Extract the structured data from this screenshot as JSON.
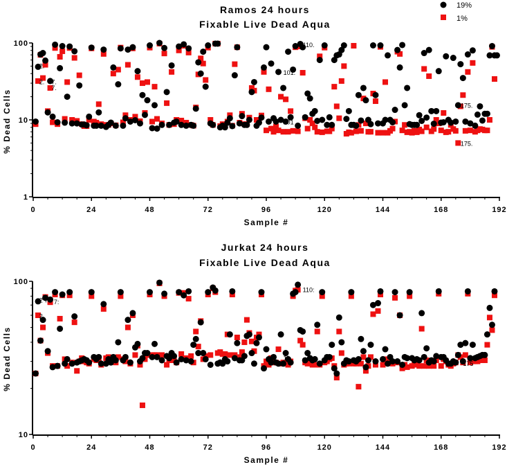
{
  "legend": [
    {
      "label": "19%",
      "color": "#000000",
      "marker": "circle"
    },
    {
      "label": "1%",
      "color": "#ee1111",
      "marker": "square"
    }
  ],
  "chart_data": [
    {
      "type": "scatter",
      "title": "Ramos 24 hours",
      "subtitle": "Fixable Live Dead Aqua",
      "xlabel": "Sample #",
      "ylabel": "% Dead Cells",
      "xlim": [
        0,
        192
      ],
      "xticks": [
        0,
        24,
        48,
        72,
        96,
        120,
        144,
        168,
        192
      ],
      "xtick_labels": [
        "0",
        "24",
        "48",
        "72",
        "96",
        "120",
        "144",
        "168",
        "192"
      ],
      "yscale": "log",
      "ylim": [
        1,
        100
      ],
      "yticks": [
        1,
        10,
        100
      ],
      "ytick_labels": [
        "1",
        "10",
        "100"
      ],
      "x_note": "sample number = position in values array starting at 1",
      "series": [
        {
          "name": "1%",
          "color": "#ee1111",
          "marker": "square",
          "values": [
            8.8,
            32,
            70,
            35,
            52,
            13,
            26,
            9.3,
            86,
            8.8,
            66,
            78,
            10.3,
            31,
            86,
            10,
            64,
            9.7,
            38,
            8.8,
            8.3,
            8.3,
            10,
            85,
            9.5,
            9.2,
            16,
            8.8,
            72,
            8.6,
            8.6,
            9,
            40,
            8.5,
            45,
            87,
            9.3,
            11.5,
            52,
            10,
            85,
            11,
            36,
            9.6,
            30,
            12.3,
            31,
            87,
            9.5,
            27,
            10.3,
            98,
            9,
            73,
            16.5,
            8.6,
            42,
            8.8,
            10,
            80,
            9.8,
            92,
            9.2,
            75,
            8.6,
            8.4,
            14.5,
            39,
            63,
            54,
            33,
            87,
            10,
            8.6,
            98,
            98,
            8.3,
            8.8,
            8.4,
            9.5,
            11.5,
            8.4,
            53,
            88,
            9.2,
            12,
            8.8,
            8.8,
            10.7,
            26,
            24,
            10,
            9.5,
            11.4,
            42,
            7.3,
            25,
            7.7,
            7,
            8.2,
            7.3,
            20,
            7,
            18.5,
            7,
            13,
            7.2,
            88,
            7.1,
            90,
            41,
            10.5,
            7.7,
            10,
            9,
            8,
            7,
            67,
            6.9,
            87,
            7.1,
            7.1,
            7.7,
            27,
            15,
            10.5,
            32,
            50,
            6.6,
            6.9,
            6.8,
            92,
            7.1,
            8.6,
            7.2,
            19,
            9,
            7,
            7,
            22,
            17.5,
            6.8,
            89,
            6.8,
            31,
            6.8,
            7.2,
            7.7,
            9.5,
            77,
            72,
            7.3,
            8.6,
            6.9,
            7,
            6.8,
            7.2,
            6.9,
            7.5,
            7.1,
            46,
            8,
            37,
            7.1,
            7.6,
            10,
            9,
            7.3,
            12.3,
            6.9,
            7,
            8.6,
            7.6,
            7.2,
            5,
            15,
            21,
            7.2,
            42,
            7.3,
            55,
            7,
            7.3,
            7.6,
            7.5,
            7.3,
            7.3,
            10,
            89,
            34
          ]
        },
        {
          "name": "19%",
          "color": "#000000",
          "marker": "circle",
          "values": [
            9.5,
            49,
            71,
            74,
            59,
            12.5,
            32,
            11,
            95,
            9.3,
            47,
            91,
            9.2,
            20,
            90,
            9,
            78,
            9,
            28,
            8.7,
            8.7,
            8.5,
            11,
            87,
            8.4,
            8.4,
            12.5,
            8.4,
            82,
            8.1,
            8.6,
            9.2,
            48,
            8.4,
            29,
            85,
            8.4,
            10.5,
            82,
            9.5,
            88,
            9.9,
            43,
            9,
            21,
            11.6,
            18,
            93,
            7.8,
            15.5,
            7.7,
            100,
            8.6,
            86,
            23,
            8.6,
            51,
            9.2,
            9.5,
            90,
            8.6,
            96,
            8.4,
            85,
            8.6,
            8.4,
            14,
            56,
            40,
            77,
            27,
            93,
            9,
            8.6,
            98,
            98,
            8,
            8.4,
            8,
            9.2,
            10.5,
            8.3,
            38,
            88,
            9,
            11.2,
            8.6,
            8.6,
            10,
            23,
            31,
            8.4,
            9.2,
            10.7,
            48,
            88,
            9.5,
            54,
            10.5,
            9.5,
            42,
            10,
            26,
            9.5,
            77,
            10.8,
            45,
            91,
            8.4,
            97,
            88,
            10.8,
            22,
            19,
            12,
            13,
            9.7,
            60,
            10,
            93,
            8.6,
            10.8,
            8.6,
            60,
            69,
            71,
            81,
            93,
            10.3,
            13,
            8.6,
            8.6,
            8.4,
            21,
            9.8,
            26,
            18,
            10,
            8.8,
            93,
            21,
            9,
            93,
            9,
            10,
            69,
            10,
            9.3,
            13.5,
            81,
            48,
            94,
            15.5,
            26,
            8.8,
            8.6,
            8.6,
            8.6,
            11.5,
            9.7,
            74,
            10.7,
            81,
            13,
            8.9,
            13,
            43,
            9.2,
            9.3,
            67,
            10,
            9.2,
            64,
            9.5,
            15.5,
            53,
            35,
            9.5,
            71,
            9,
            80,
            8.4,
            11.7,
            15,
            9.8,
            12,
            12,
            69,
            91,
            69,
            69
          ]
        }
      ],
      "annotations": [
        {
          "text": "2.",
          "x": 2.5,
          "y": 50
        },
        {
          "text": "2.",
          "x": 2.5,
          "y": 31
        },
        {
          "text": "7.",
          "x": 7.5,
          "y": 31
        },
        {
          "text": "7.",
          "x": 7.5,
          "y": 26
        },
        {
          "text": "110.",
          "x": 111,
          "y": 94
        },
        {
          "text": "101.",
          "x": 103,
          "y": 41
        },
        {
          "text": "101",
          "x": 103,
          "y": 9.3
        },
        {
          "text": "175.",
          "x": 176,
          "y": 15.3
        },
        {
          "text": "175.",
          "x": 176,
          "y": 4.9
        }
      ]
    },
    {
      "type": "scatter",
      "title": "Jurkat 24 hours",
      "subtitle": "Fixable Live Dead Aqua",
      "xlabel": "Sample #",
      "ylabel": "% Dead Cells",
      "xlim": [
        0,
        192
      ],
      "xticks": [
        0,
        24,
        48,
        72,
        96,
        120,
        144,
        168,
        192
      ],
      "xtick_labels": [
        "0",
        "24",
        "48",
        "72",
        "96",
        "120",
        "144",
        "168",
        "192"
      ],
      "yscale": "log",
      "ylim": [
        10,
        100
      ],
      "yticks": [
        10,
        100
      ],
      "ytick_labels": [
        "10",
        "100"
      ],
      "series": [
        {
          "name": "1%",
          "color": "#ee1111",
          "marker": "square",
          "values": [
            25,
            60,
            41,
            50,
            79,
            34,
            73,
            28,
            82,
            28,
            57,
            81,
            31,
            28,
            81,
            29.5,
            54,
            26,
            30,
            31.5,
            30,
            29.5,
            29,
            80,
            31,
            30.5,
            30.5,
            28.5,
            66,
            31.5,
            32,
            31.5,
            31.5,
            29.5,
            32,
            80,
            31,
            30,
            50,
            29,
            60,
            33,
            38,
            28.5,
            15.5,
            31,
            33,
            82,
            33,
            33,
            33,
            97,
            33,
            80,
            28.5,
            30.5,
            32,
            30.5,
            29.5,
            84,
            33.5,
            84,
            31.5,
            77,
            32.5,
            29.5,
            47,
            37.5,
            55,
            31,
            32.5,
            82,
            33,
            90,
            85,
            34,
            34.5,
            33.5,
            33.5,
            45,
            33,
            82,
            33,
            43,
            32,
            34.5,
            40,
            56,
            46,
            40.5,
            35,
            43,
            45,
            82,
            28,
            30,
            28.5,
            31.5,
            29.5,
            29.5,
            36,
            29,
            29.5,
            29,
            28.5,
            30,
            80,
            87,
            88,
            41,
            38.5,
            29.5,
            29,
            29.5,
            28.5,
            28.5,
            47,
            28.5,
            80,
            29.5,
            30,
            31,
            31.5,
            28,
            23.5,
            47,
            34,
            28.5,
            29,
            29,
            80,
            29,
            29,
            20.5,
            29,
            32,
            26,
            28,
            32,
            61,
            28.5,
            64,
            82,
            28.5,
            31,
            29.5,
            29.5,
            29,
            78,
            29.5,
            60,
            27,
            28.5,
            27.5,
            80,
            28,
            29,
            28.5,
            28,
            49,
            28,
            30.5,
            28,
            28.5,
            28,
            30.5,
            83,
            28,
            31,
            30,
            28.5,
            28,
            29,
            29.5,
            33,
            32,
            29.5,
            33,
            83,
            29.5,
            30,
            30,
            30,
            30.5,
            30.5,
            30.5,
            38.5,
            58,
            48,
            81
          ]
        },
        {
          "name": "19%",
          "color": "#000000",
          "marker": "circle",
          "values": [
            25,
            74,
            41,
            56,
            78,
            35,
            76,
            27.5,
            85,
            28,
            49,
            82,
            29,
            31,
            85,
            29,
            59,
            29.5,
            30,
            30.5,
            31,
            30.5,
            29.5,
            85,
            32,
            31,
            32,
            29,
            71,
            29,
            31,
            29.5,
            32,
            30.5,
            40,
            85,
            30.5,
            32,
            56,
            29.5,
            62,
            37,
            39,
            30,
            31.5,
            34,
            34,
            85,
            32,
            39,
            32,
            98,
            30.5,
            83,
            32.5,
            31.5,
            34,
            32.5,
            29.5,
            85,
            31,
            81,
            30.5,
            86,
            30,
            38.5,
            42,
            34,
            54,
            34,
            31,
            85,
            28.5,
            91,
            87,
            29,
            29.5,
            29,
            31,
            30,
            45,
            86,
            31.5,
            39.5,
            30.5,
            30.5,
            32.5,
            44,
            45,
            34,
            29,
            39.5,
            43,
            85,
            27,
            36,
            31,
            29.5,
            32,
            29.5,
            29,
            45,
            29,
            34,
            31,
            29.5,
            83,
            85,
            95,
            48,
            47,
            30.5,
            34,
            31.5,
            30.5,
            31,
            52,
            29,
            85,
            30.5,
            32,
            32,
            38.5,
            27,
            25,
            58,
            40,
            29,
            30.5,
            30,
            85,
            30.5,
            30,
            31,
            42,
            35,
            27.5,
            30.5,
            38.5,
            70,
            30,
            72,
            86,
            31,
            36,
            29,
            32,
            30,
            85,
            30,
            60,
            28.5,
            32,
            31.5,
            85,
            31.5,
            30.5,
            31,
            30.5,
            62,
            32,
            36.5,
            29.5,
            30.5,
            30,
            32.5,
            86,
            32,
            32,
            30.5,
            29,
            29,
            30,
            29.5,
            33,
            38.5,
            30,
            39.5,
            86,
            31.5,
            38.5,
            31.5,
            32,
            32.5,
            33,
            33,
            45,
            67,
            52,
            86
          ]
        }
      ],
      "annotations": [
        {
          "text": "2 7",
          "x": 2.5,
          "y": 75
        },
        {
          "text": "7:",
          "x": 8.5,
          "y": 73
        },
        {
          "text": "2.",
          "x": 2.5,
          "y": 59
        },
        {
          "text": "110:",
          "x": 111,
          "y": 88
        },
        {
          "text": "11",
          "x": 103,
          "y": 31.5
        },
        {
          "text": "175",
          "x": 177,
          "y": 29
        }
      ]
    }
  ]
}
